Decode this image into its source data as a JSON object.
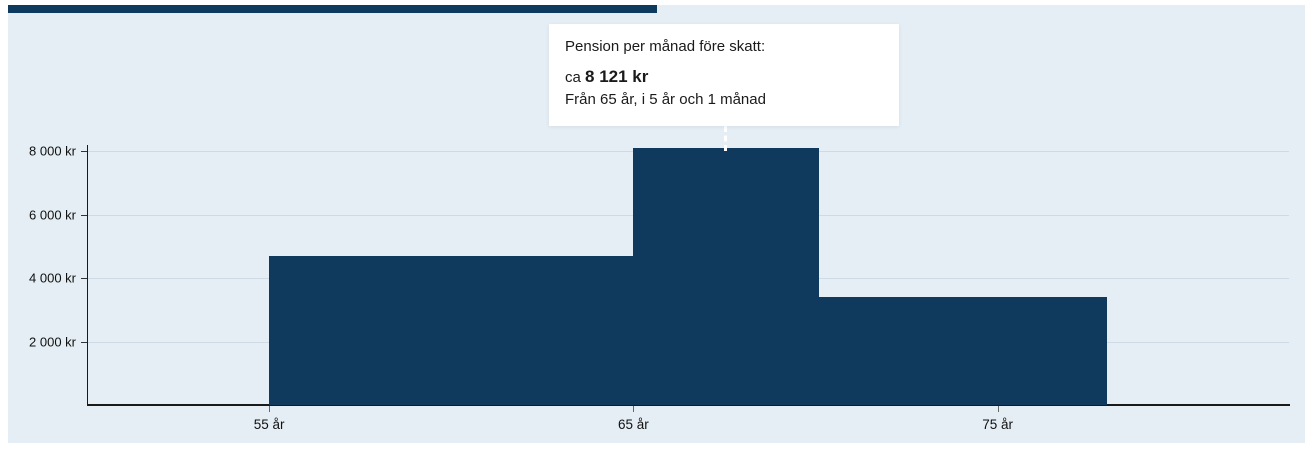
{
  "colors": {
    "panel_bg": "#e4eef4",
    "accent_bar": "#0d3a5e",
    "bar": "#0f3a5d",
    "axis": "#1a1a1a",
    "grid": "rgba(15,58,93,0.10)",
    "label": "#111111",
    "tooltip_bg": "#ffffff",
    "connector": "#ffffff"
  },
  "tooltip": {
    "title": "Pension per månad före skatt:",
    "value_prefix": "ca ",
    "value": "8 121 kr",
    "range": "Från 65 år, i 5 år och 1 månad"
  },
  "chart_data": {
    "type": "area",
    "subtype": "step",
    "title": "Pension per månad före skatt",
    "xlabel": "",
    "ylabel": "",
    "xlim": [
      50,
      83
    ],
    "ylim": [
      0,
      8200
    ],
    "grid": "horizontal",
    "legend": "none",
    "x_ticks": [
      {
        "value": 55,
        "label": "55 år"
      },
      {
        "value": 65,
        "label": "65 år"
      },
      {
        "value": 75,
        "label": "75 år"
      }
    ],
    "y_ticks": [
      {
        "value": 2000,
        "label": "2 000 kr"
      },
      {
        "value": 4000,
        "label": "4 000 kr"
      },
      {
        "value": 6000,
        "label": "6 000 kr"
      },
      {
        "value": 8000,
        "label": "8 000 kr"
      }
    ],
    "segments": [
      {
        "from_age": 55,
        "to_age": 65,
        "value_kr": 4700
      },
      {
        "from_age": 65,
        "to_age": 70.083,
        "value_kr": 8121
      },
      {
        "from_age": 70.083,
        "to_age": 78,
        "value_kr": 3400
      }
    ],
    "highlighted_segment_index": 1
  }
}
